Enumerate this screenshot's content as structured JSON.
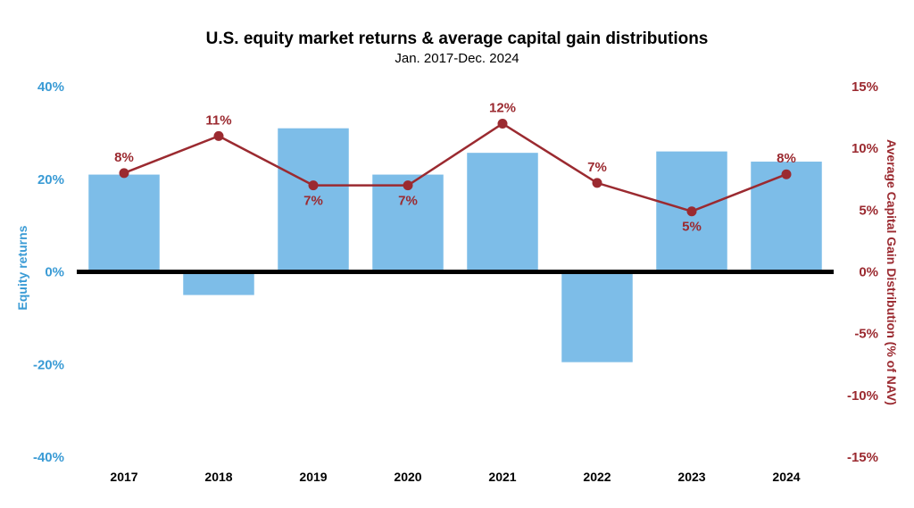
{
  "colors": {
    "bar": "#7dbde8",
    "line": "#9b2a30",
    "left_axis": "#3a9bd5",
    "right_axis": "#9b2a30",
    "zero_line": "#000000"
  },
  "chart_data": {
    "type": "bar",
    "title": "U.S. equity market returns & average capital gain distributions",
    "subtitle": "Jan. 2017-Dec. 2024",
    "categories": [
      "2017",
      "2018",
      "2019",
      "2020",
      "2021",
      "2022",
      "2023",
      "2024"
    ],
    "y_left": {
      "label": "Equity returns",
      "lim": [
        -40,
        40
      ],
      "ticks": [
        40,
        20,
        0,
        -20,
        -40
      ],
      "tick_labels": [
        "40%",
        "20%",
        "0%",
        "-20%",
        "-40%"
      ]
    },
    "y_right": {
      "label": "Average Capital Gain Distribution (% of NAV)",
      "lim": [
        -15,
        15
      ],
      "ticks": [
        15,
        10,
        5,
        0,
        -5,
        -10,
        -15
      ],
      "tick_labels": [
        "15%",
        "10%",
        "5%",
        "0%",
        "-5%",
        "-10%",
        "-15%"
      ]
    },
    "series": [
      {
        "name": "Equity returns",
        "type": "bar",
        "axis": "left",
        "values": [
          21,
          -5,
          31,
          21,
          25.7,
          -19.5,
          26,
          23.8
        ]
      },
      {
        "name": "Average capital gain distribution",
        "type": "line",
        "axis": "right",
        "values": [
          8,
          11,
          7,
          7,
          12,
          7.2,
          4.9,
          7.9
        ],
        "data_labels": [
          "8%",
          "11%",
          "7%",
          "7%",
          "12%",
          "7%",
          "5%",
          "8%"
        ]
      }
    ]
  }
}
